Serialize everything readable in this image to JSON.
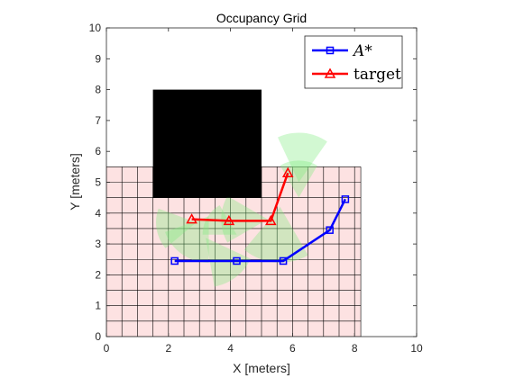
{
  "chart_data": {
    "type": "line",
    "title": "Occupancy Grid",
    "xlabel": "X [meters]",
    "ylabel": "Y [meters]",
    "xlim": [
      0,
      10
    ],
    "ylim": [
      0,
      10
    ],
    "xticks": [
      0,
      2,
      4,
      6,
      8,
      10
    ],
    "yticks": [
      0,
      1,
      2,
      3,
      4,
      5,
      6,
      7,
      8,
      9,
      10
    ],
    "legend_position": "top-right",
    "grid_region": {
      "x": [
        0,
        8.2
      ],
      "y": [
        0,
        5.5
      ],
      "cell_size": 0.5,
      "fill_color": "#fde2e2",
      "line_color": "#000000"
    },
    "obstacle": {
      "x": [
        1.5,
        5.0
      ],
      "y": [
        4.5,
        8.0
      ],
      "color": "#000000"
    },
    "fov_color": "#7dea7d",
    "fov_wedges": [
      {
        "cx": 6.2,
        "cy": 5.0,
        "r": 1.6,
        "a1": 55,
        "a2": 115
      },
      {
        "cx": 6.2,
        "cy": 4.5,
        "r": 1.2,
        "a1": 60,
        "a2": 120
      },
      {
        "cx": 5.6,
        "cy": 4.2,
        "r": 1.8,
        "a1": 230,
        "a2": 300
      },
      {
        "cx": 5.2,
        "cy": 3.8,
        "r": 1.5,
        "a1": 150,
        "a2": 210
      },
      {
        "cx": 3.3,
        "cy": 3.9,
        "r": 1.5,
        "a1": 200,
        "a2": 270
      },
      {
        "cx": 2.9,
        "cy": 3.7,
        "r": 1.3,
        "a1": 160,
        "a2": 220
      },
      {
        "cx": 3.2,
        "cy": 3.2,
        "r": 1.6,
        "a1": 280,
        "a2": 335
      },
      {
        "cx": 4.2,
        "cy": 3.3,
        "r": 1.1,
        "a1": 120,
        "a2": 180
      }
    ],
    "series": [
      {
        "name": "A*",
        "color": "#0000ff",
        "marker": "square",
        "x": [
          2.2,
          4.2,
          5.7,
          7.2,
          7.7
        ],
        "y": [
          2.45,
          2.45,
          2.45,
          3.45,
          4.45
        ]
      },
      {
        "name": "target",
        "color": "#ff0000",
        "marker": "triangle",
        "x": [
          2.75,
          3.95,
          5.3,
          5.85
        ],
        "y": [
          3.8,
          3.75,
          3.75,
          5.3
        ]
      }
    ]
  }
}
